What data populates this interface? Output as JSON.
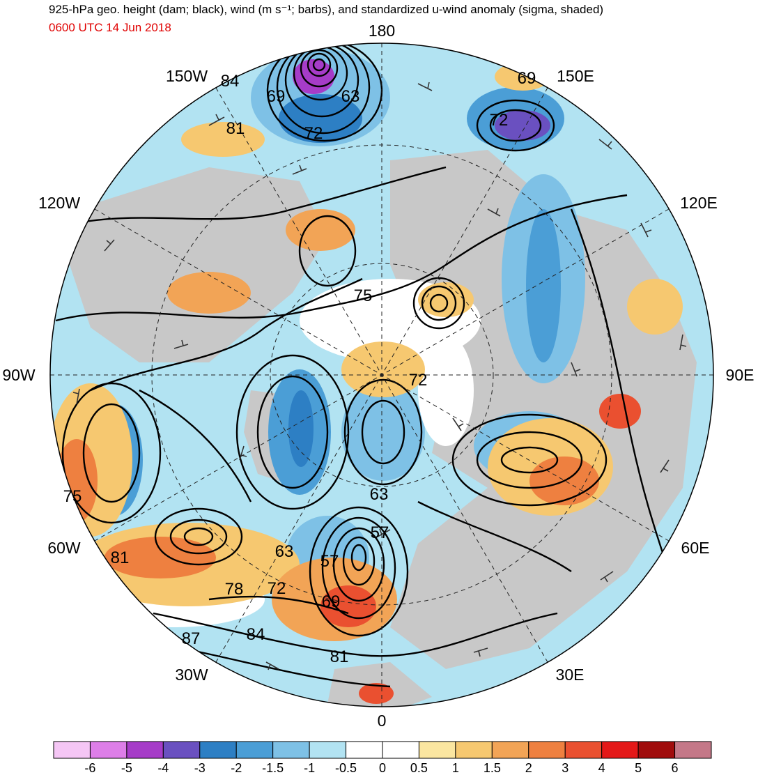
{
  "header": {
    "title": "925-hPa geo. height (dam; black), wind (m s⁻¹; barbs), and standardized u-wind anomaly (sigma, shaded)",
    "time": "0600 UTC 14 Jun 2018"
  },
  "map": {
    "projection": "north-polar-stereographic",
    "longitude_labels": {
      "deg0": "0",
      "deg30e": "30E",
      "deg60e": "60E",
      "deg90e": "90E",
      "deg120e": "120E",
      "deg150e": "150E",
      "deg180": "180",
      "deg150w": "150W",
      "deg120w": "120W",
      "deg90w": "90W",
      "deg60w": "60W",
      "deg30w": "30W"
    },
    "contour_labels": [
      "84",
      "81",
      "69",
      "63",
      "72",
      "69",
      "72",
      "75",
      "72",
      "75",
      "63",
      "57",
      "63",
      "57",
      "72",
      "69",
      "78",
      "81",
      "84",
      "87",
      "81",
      "75"
    ],
    "colors": {
      "land": "#c8c8c8",
      "contour": "#000000",
      "title_time": "#e00000"
    }
  },
  "colorbar": {
    "ticks": [
      "-6",
      "-5",
      "-4",
      "-3",
      "-2",
      "-1.5",
      "-1",
      "-0.5",
      "0",
      "0.5",
      "1",
      "1.5",
      "2",
      "3",
      "4",
      "5",
      "6"
    ],
    "colors": [
      "#f5c6f5",
      "#dd7ee8",
      "#a63cc8",
      "#6a50c0",
      "#2d7fc4",
      "#4b9ed6",
      "#7ec1e6",
      "#b2e3f2",
      "#ffffff",
      "#ffffff",
      "#fbe6a0",
      "#f6c870",
      "#f2a456",
      "#ee8040",
      "#ea5030",
      "#e41818",
      "#a00c0c",
      "#c47888"
    ]
  }
}
